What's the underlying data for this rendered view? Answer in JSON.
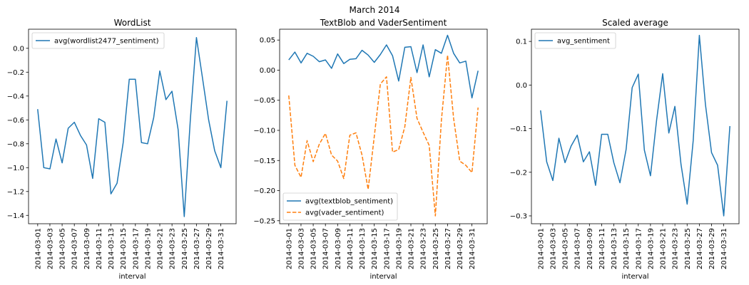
{
  "suptitle": "March 2014",
  "chart_data": [
    {
      "type": "line",
      "title": "WordList",
      "xlabel": "interval",
      "ylabel": "",
      "ylim": [
        -1.47,
        0.16
      ],
      "yticks": [
        0.0,
        -0.2,
        -0.4,
        -0.6,
        -0.8,
        -1.0,
        -1.2,
        -1.4
      ],
      "legend": "top-left",
      "grid": false,
      "x": [
        "2014-03-01",
        "2014-03-02",
        "2014-03-03",
        "2014-03-04",
        "2014-03-05",
        "2014-03-06",
        "2014-03-07",
        "2014-03-08",
        "2014-03-09",
        "2014-03-10",
        "2014-03-11",
        "2014-03-12",
        "2014-03-13",
        "2014-03-14",
        "2014-03-15",
        "2014-03-16",
        "2014-03-17",
        "2014-03-18",
        "2014-03-19",
        "2014-03-20",
        "2014-03-21",
        "2014-03-22",
        "2014-03-23",
        "2014-03-24",
        "2014-03-25",
        "2014-03-26",
        "2014-03-27",
        "2014-03-28",
        "2014-03-29",
        "2014-03-30",
        "2014-03-31",
        "2014-04-01"
      ],
      "xtick_labels": [
        "2014-03-01",
        "2014-03-03",
        "2014-03-05",
        "2014-03-07",
        "2014-03-09",
        "2014-03-11",
        "2014-03-13",
        "2014-03-15",
        "2014-03-17",
        "2014-03-19",
        "2014-03-21",
        "2014-03-23",
        "2014-03-25",
        "2014-03-27",
        "2014-03-29",
        "2014-03-31"
      ],
      "series": [
        {
          "name": "avg(wordlist2477_sentiment)",
          "color": "#1f77b4",
          "dash": "solid",
          "values": [
            -0.51,
            -1.0,
            -1.01,
            -0.76,
            -0.96,
            -0.67,
            -0.62,
            -0.73,
            -0.81,
            -1.09,
            -0.59,
            -0.62,
            -1.22,
            -1.13,
            -0.79,
            -0.26,
            -0.26,
            -0.79,
            -0.8,
            -0.58,
            -0.19,
            -0.43,
            -0.36,
            -0.68,
            -1.41,
            -0.6,
            0.09,
            -0.25,
            -0.6,
            -0.86,
            -1.0,
            -0.44
          ]
        }
      ]
    },
    {
      "type": "line",
      "title": "TextBlob and VaderSentiment",
      "xlabel": "interval",
      "ylabel": "",
      "ylim": [
        -0.255,
        0.068
      ],
      "yticks": [
        0.05,
        0.0,
        -0.05,
        -0.1,
        -0.15,
        -0.2,
        -0.25
      ],
      "legend": "bottom-left",
      "grid": false,
      "x": [
        "2014-03-01",
        "2014-03-02",
        "2014-03-03",
        "2014-03-04",
        "2014-03-05",
        "2014-03-06",
        "2014-03-07",
        "2014-03-08",
        "2014-03-09",
        "2014-03-10",
        "2014-03-11",
        "2014-03-12",
        "2014-03-13",
        "2014-03-14",
        "2014-03-15",
        "2014-03-16",
        "2014-03-17",
        "2014-03-18",
        "2014-03-19",
        "2014-03-20",
        "2014-03-21",
        "2014-03-22",
        "2014-03-23",
        "2014-03-24",
        "2014-03-25",
        "2014-03-26",
        "2014-03-27",
        "2014-03-28",
        "2014-03-29",
        "2014-03-30",
        "2014-03-31",
        "2014-04-01"
      ],
      "xtick_labels": [
        "2014-03-01",
        "2014-03-03",
        "2014-03-05",
        "2014-03-07",
        "2014-03-09",
        "2014-03-11",
        "2014-03-13",
        "2014-03-15",
        "2014-03-17",
        "2014-03-19",
        "2014-03-21",
        "2014-03-23",
        "2014-03-25",
        "2014-03-27",
        "2014-03-29",
        "2014-03-31"
      ],
      "series": [
        {
          "name": "avg(textblob_sentiment)",
          "color": "#1f77b4",
          "dash": "solid",
          "values": [
            0.017,
            0.03,
            0.012,
            0.028,
            0.023,
            0.014,
            0.017,
            0.003,
            0.027,
            0.011,
            0.018,
            0.019,
            0.033,
            0.025,
            0.013,
            0.026,
            0.042,
            0.024,
            -0.018,
            0.038,
            0.039,
            -0.004,
            0.042,
            -0.011,
            0.034,
            0.028,
            0.058,
            0.028,
            0.012,
            0.015,
            -0.046,
            -0.001
          ]
        },
        {
          "name": "avg(vader_sentiment)",
          "color": "#ff7f0e",
          "dash": "dashed",
          "values": [
            -0.042,
            -0.158,
            -0.178,
            -0.117,
            -0.152,
            -0.123,
            -0.105,
            -0.141,
            -0.151,
            -0.18,
            -0.108,
            -0.104,
            -0.141,
            -0.198,
            -0.11,
            -0.023,
            -0.011,
            -0.136,
            -0.132,
            -0.094,
            -0.012,
            -0.08,
            -0.103,
            -0.125,
            -0.242,
            -0.083,
            0.025,
            -0.08,
            -0.151,
            -0.158,
            -0.17,
            -0.062
          ]
        }
      ]
    },
    {
      "type": "line",
      "title": "Scaled average",
      "xlabel": "interval",
      "ylabel": "",
      "ylim": [
        -0.318,
        0.128
      ],
      "yticks": [
        0.1,
        0.0,
        -0.1,
        -0.2,
        -0.3
      ],
      "legend": "top-left",
      "grid": false,
      "x": [
        "2014-03-01",
        "2014-03-02",
        "2014-03-03",
        "2014-03-04",
        "2014-03-05",
        "2014-03-06",
        "2014-03-07",
        "2014-03-08",
        "2014-03-09",
        "2014-03-10",
        "2014-03-11",
        "2014-03-12",
        "2014-03-13",
        "2014-03-14",
        "2014-03-15",
        "2014-03-16",
        "2014-03-17",
        "2014-03-18",
        "2014-03-19",
        "2014-03-20",
        "2014-03-21",
        "2014-03-22",
        "2014-03-23",
        "2014-03-24",
        "2014-03-25",
        "2014-03-26",
        "2014-03-27",
        "2014-03-28",
        "2014-03-29",
        "2014-03-30",
        "2014-03-31",
        "2014-04-01"
      ],
      "xtick_labels": [
        "2014-03-01",
        "2014-03-03",
        "2014-03-05",
        "2014-03-07",
        "2014-03-09",
        "2014-03-11",
        "2014-03-13",
        "2014-03-15",
        "2014-03-17",
        "2014-03-19",
        "2014-03-21",
        "2014-03-23",
        "2014-03-25",
        "2014-03-27",
        "2014-03-29",
        "2014-03-31"
      ],
      "series": [
        {
          "name": "avg_sentiment",
          "color": "#1f77b4",
          "dash": "solid",
          "values": [
            -0.058,
            -0.176,
            -0.219,
            -0.122,
            -0.178,
            -0.14,
            -0.115,
            -0.176,
            -0.153,
            -0.23,
            -0.113,
            -0.113,
            -0.178,
            -0.224,
            -0.148,
            -0.006,
            0.025,
            -0.149,
            -0.208,
            -0.08,
            0.026,
            -0.11,
            -0.049,
            -0.182,
            -0.273,
            -0.127,
            0.114,
            -0.044,
            -0.155,
            -0.184,
            -0.3,
            -0.094
          ]
        }
      ]
    }
  ]
}
